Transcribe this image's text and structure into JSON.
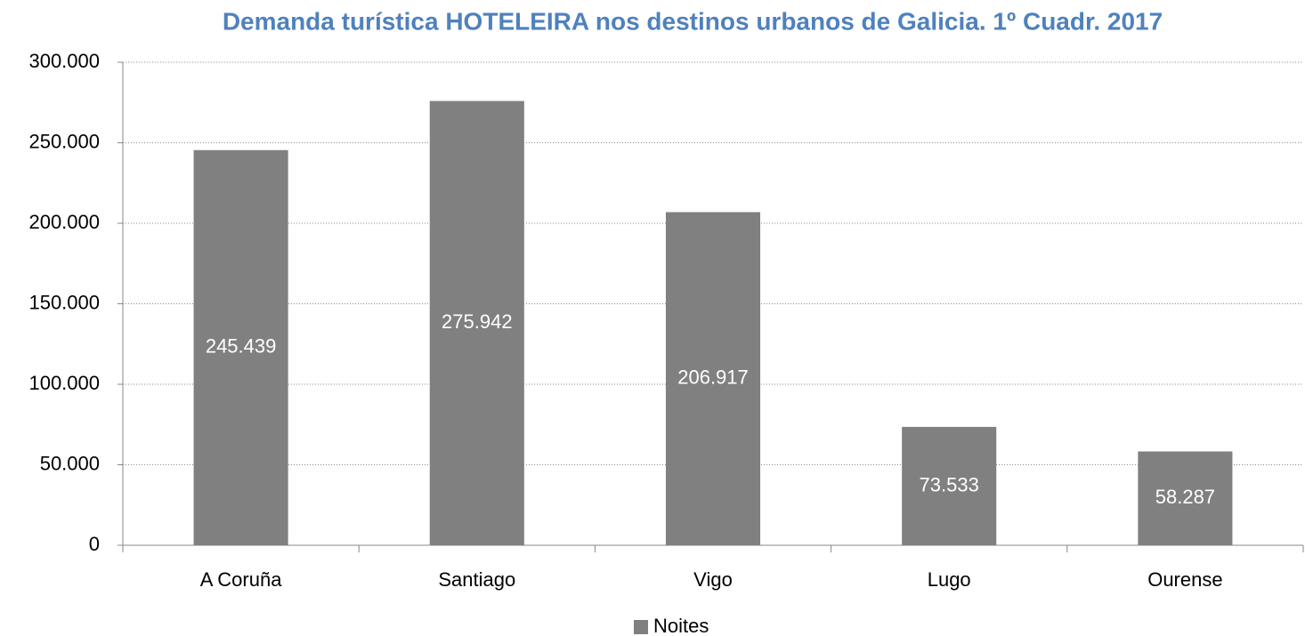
{
  "chart_data": {
    "type": "bar",
    "title": "Demanda turística HOTELEIRA nos destinos urbanos de Galicia. 1º Cuadr. 2017",
    "categories": [
      "A Coruña",
      "Santiago",
      "Vigo",
      "Lugo",
      "Ourense"
    ],
    "series": [
      {
        "name": "Noites",
        "color": "#808080",
        "values": [
          245439,
          275942,
          206917,
          73533,
          58287
        ],
        "value_labels": [
          "245.439",
          "275.942",
          "206.917",
          "73.533",
          "58.287"
        ]
      }
    ],
    "ylim": [
      0,
      300000
    ],
    "yticks": [
      0,
      {
        "value": 50000,
        "label": "50.000"
      },
      {
        "value": 100000,
        "label": "100.000"
      },
      {
        "value": 150000,
        "label": "150.000"
      },
      {
        "value": 200000,
        "label": "200.000"
      },
      {
        "value": 250000,
        "label": "250.000"
      },
      {
        "value": 300000,
        "label": "300.000"
      }
    ],
    "grid": true,
    "legend": "bottom"
  }
}
